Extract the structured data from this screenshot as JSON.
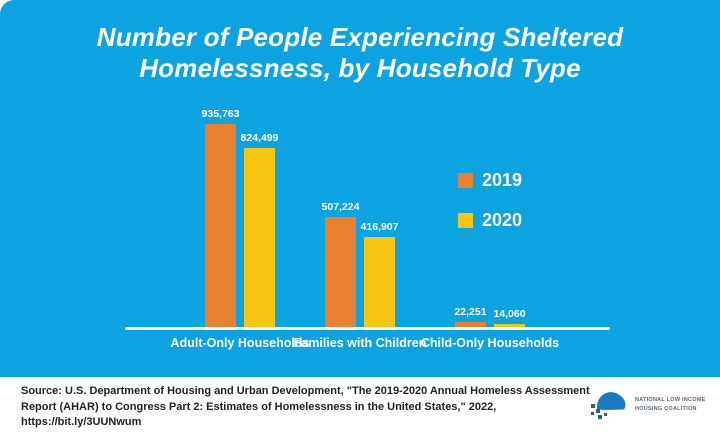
{
  "title": {
    "line1": "Number of People Experiencing Sheltered",
    "line2": "Homelessness, by Household Type"
  },
  "chart_data": {
    "type": "bar",
    "categories": [
      "Adult-Only Households",
      "Families with Children",
      "Child-Only Households"
    ],
    "series": [
      {
        "name": "2019",
        "color": "#e8802f",
        "values": [
          935763,
          507224,
          22251
        ],
        "labels": [
          "935,763",
          "507,224",
          "22,251"
        ]
      },
      {
        "name": "2020",
        "color": "#f9c513",
        "values": [
          824499,
          416907,
          14060
        ],
        "labels": [
          "824,499",
          "416,907",
          "14,060"
        ]
      }
    ],
    "ylim": [
      0,
      935763
    ],
    "grid": false,
    "legend_position": "right",
    "axis_color": "#ffffff",
    "label_color": "#ffffff"
  },
  "footer": {
    "source_text": "Source: U.S. Department of Housing and Urban Development, \"The 2019-2020 Annual Homeless Assessment Report (AHAR) to Congress Part 2: Estimates of Homelessness in the United States,\" 2022, https://bit.ly/3UUNwum",
    "logo_line1": "National Low Income",
    "logo_line2": "Housing Coalition"
  },
  "colors": {
    "background": "#0ba3e0",
    "bar_2019": "#e8802f",
    "bar_2020": "#f9c513",
    "logo_roof": "#1879bf",
    "logo_squares": "#2a5f88"
  }
}
